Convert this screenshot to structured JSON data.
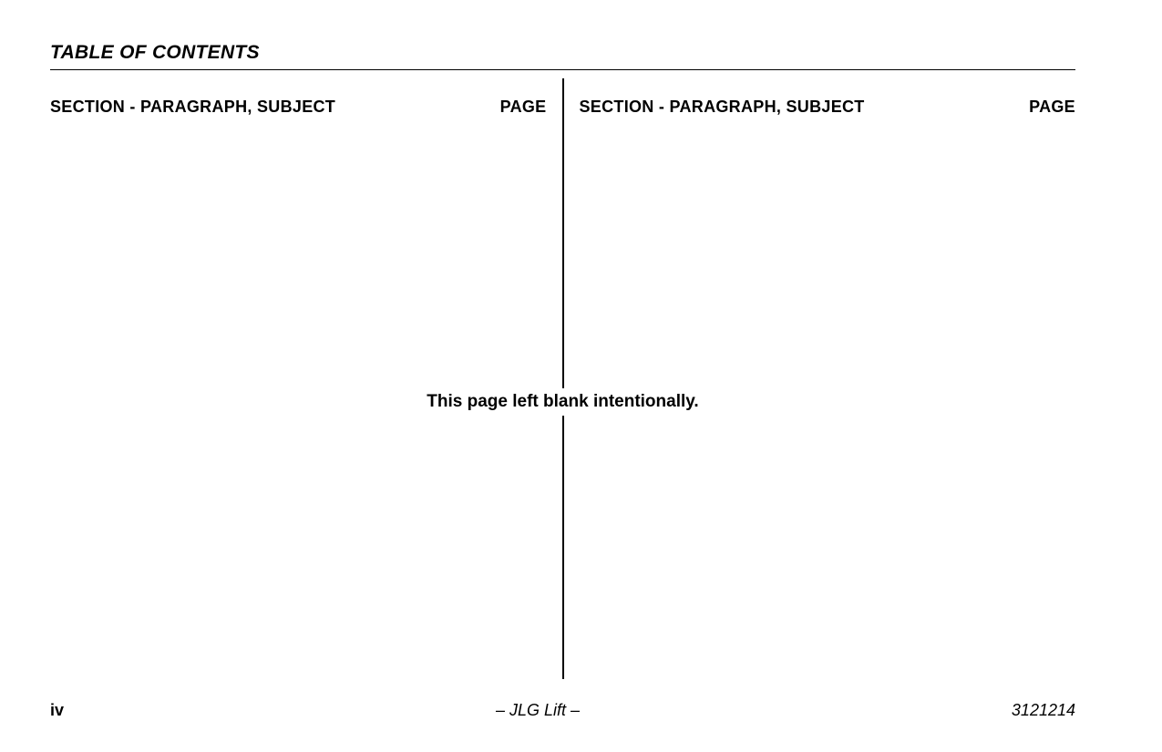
{
  "header": {
    "title": "TABLE OF CONTENTS"
  },
  "columns": {
    "left": {
      "subject_label": "SECTION - PARAGRAPH, SUBJECT",
      "page_label": "PAGE"
    },
    "right": {
      "subject_label": "SECTION - PARAGRAPH, SUBJECT",
      "page_label": "PAGE"
    }
  },
  "body": {
    "blank_notice": "This page left blank intentionally."
  },
  "footer": {
    "page_number": "iv",
    "center_text": "– JLG Lift –",
    "doc_number": "3121214"
  }
}
